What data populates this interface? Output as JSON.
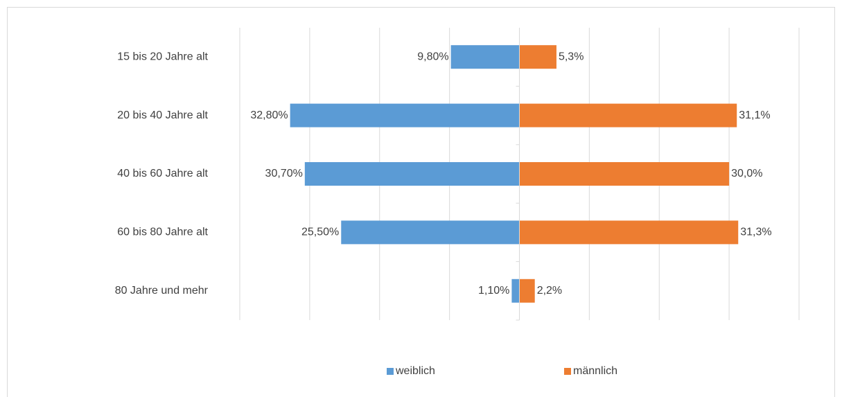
{
  "chart_data": {
    "type": "butterfly",
    "categories": [
      "15 bis 20 Jahre alt",
      "20 bis 40 Jahre alt",
      "40 bis 60 Jahre alt",
      "60 bis 80 Jahre alt",
      "80 Jahre und mehr"
    ],
    "series": [
      {
        "name": "weiblich",
        "color": "#5b9bd5",
        "values": [
          9.8,
          32.8,
          30.7,
          25.5,
          1.1
        ],
        "value_labels": [
          "9,80%",
          "32,80%",
          "30,70%",
          "25,50%",
          "1,10%"
        ]
      },
      {
        "name": "männlich",
        "color": "#ed7d31",
        "values": [
          5.3,
          31.1,
          30.0,
          31.3,
          2.2
        ],
        "value_labels": [
          "5,3%",
          "31,1%",
          "30,0%",
          "31,3%",
          "2,2%"
        ]
      }
    ],
    "xlim": [
      -40,
      40
    ],
    "xticks": [
      -40,
      -30,
      -20,
      -10,
      0,
      10,
      20,
      30,
      40
    ],
    "grid": true,
    "legend": "bottom"
  }
}
